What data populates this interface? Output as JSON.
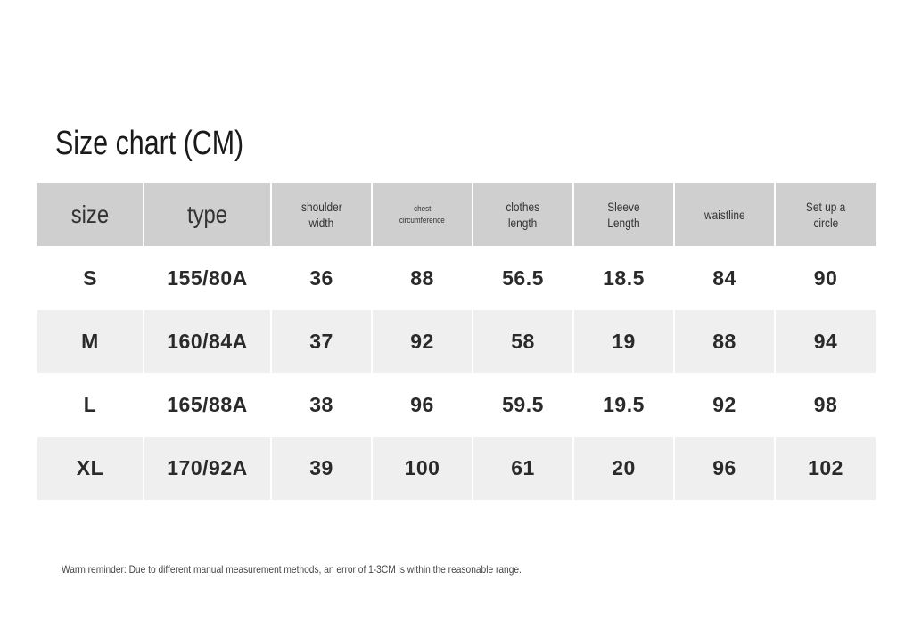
{
  "title": "Size chart (CM)",
  "table": {
    "header": [
      [
        "size"
      ],
      [
        "type"
      ],
      [
        "shoulder",
        "width"
      ],
      [
        "chest",
        "circumference"
      ],
      [
        "clothes",
        "length"
      ],
      [
        "Sleeve",
        "Length"
      ],
      [
        "waistline"
      ],
      [
        "Set up a",
        "circle"
      ]
    ],
    "rows": [
      [
        "S",
        "155/80A",
        "36",
        "88",
        "56.5",
        "18.5",
        "84",
        "90"
      ],
      [
        "M",
        "160/84A",
        "37",
        "92",
        "58",
        "19",
        "88",
        "94"
      ],
      [
        "L",
        "165/88A",
        "38",
        "96",
        "59.5",
        "19.5",
        "92",
        "98"
      ],
      [
        "XL",
        "170/92A",
        "39",
        "100",
        "61",
        "20",
        "96",
        "102"
      ]
    ]
  },
  "note": "Warm reminder: Due to different manual measurement methods, an error of 1-3CM is within the reasonable range."
}
